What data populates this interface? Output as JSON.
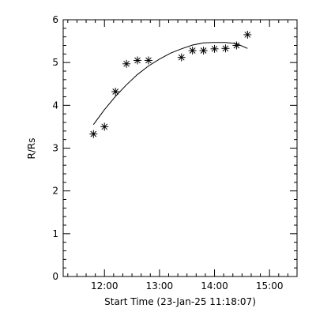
{
  "chart_data": {
    "type": "scatter",
    "title": "",
    "xlabel": "Start Time (23-Jan-25 11:18:07)",
    "ylabel": "R/Rs",
    "xlim": [
      "11:15",
      "15:30"
    ],
    "ylim": [
      0,
      6
    ],
    "x_ticks": [
      "12:00",
      "13:00",
      "14:00",
      "15:00"
    ],
    "y_ticks": [
      "0",
      "1",
      "2",
      "3",
      "4",
      "5",
      "6"
    ],
    "marker": "asterisk",
    "grid": false,
    "points": [
      {
        "x": "11:48",
        "y": 3.33
      },
      {
        "x": "12:00",
        "y": 3.5
      },
      {
        "x": "12:12",
        "y": 4.32
      },
      {
        "x": "12:24",
        "y": 4.97
      },
      {
        "x": "12:36",
        "y": 5.05
      },
      {
        "x": "12:48",
        "y": 5.05
      },
      {
        "x": "13:24",
        "y": 5.12
      },
      {
        "x": "13:36",
        "y": 5.28
      },
      {
        "x": "13:48",
        "y": 5.28
      },
      {
        "x": "14:00",
        "y": 5.32
      },
      {
        "x": "14:12",
        "y": 5.33
      },
      {
        "x": "14:24",
        "y": 5.4
      },
      {
        "x": "14:36",
        "y": 5.65
      }
    ],
    "fit_curve": [
      {
        "x": "11:48",
        "y": 3.55
      },
      {
        "x": "12:00",
        "y": 3.9
      },
      {
        "x": "12:12",
        "y": 4.21
      },
      {
        "x": "12:24",
        "y": 4.48
      },
      {
        "x": "12:36",
        "y": 4.72
      },
      {
        "x": "12:48",
        "y": 4.92
      },
      {
        "x": "13:00",
        "y": 5.08
      },
      {
        "x": "13:12",
        "y": 5.22
      },
      {
        "x": "13:24",
        "y": 5.32
      },
      {
        "x": "13:36",
        "y": 5.41
      },
      {
        "x": "13:48",
        "y": 5.46
      },
      {
        "x": "14:00",
        "y": 5.47
      },
      {
        "x": "14:12",
        "y": 5.47
      },
      {
        "x": "14:24",
        "y": 5.44
      },
      {
        "x": "14:36",
        "y": 5.33
      }
    ]
  }
}
